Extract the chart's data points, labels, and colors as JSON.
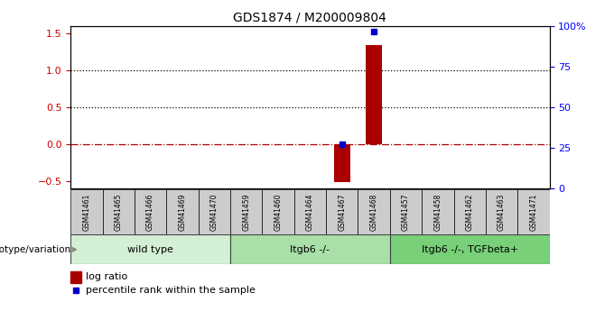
{
  "title": "GDS1874 / M200009804",
  "samples": [
    "GSM41461",
    "GSM41465",
    "GSM41466",
    "GSM41469",
    "GSM41470",
    "GSM41459",
    "GSM41460",
    "GSM41464",
    "GSM41467",
    "GSM41468",
    "GSM41457",
    "GSM41458",
    "GSM41462",
    "GSM41463",
    "GSM41471"
  ],
  "log_ratio": [
    0,
    0,
    0,
    0,
    0,
    0,
    0,
    0,
    -0.52,
    1.35,
    0,
    0,
    0,
    0,
    0
  ],
  "percentile_rank": [
    null,
    null,
    null,
    null,
    null,
    null,
    null,
    null,
    27,
    97,
    null,
    null,
    null,
    null,
    null
  ],
  "groups": [
    {
      "label": "wild type",
      "start": 0,
      "end": 5,
      "color": "#d4f0d4"
    },
    {
      "label": "Itgb6 -/-",
      "start": 5,
      "end": 10,
      "color": "#a8e0a8"
    },
    {
      "label": "Itgb6 -/-, TGFbeta+",
      "start": 10,
      "end": 15,
      "color": "#78d078"
    }
  ],
  "ylim": [
    -0.6,
    1.6
  ],
  "ylim_right": [
    0,
    100
  ],
  "bar_color": "#aa0000",
  "dot_color": "#0000cc",
  "zero_line_color": "#aa0000",
  "dotted_line_color": "#000000",
  "hline_values": [
    0.5,
    1.0
  ],
  "right_yticks": [
    0,
    25,
    50,
    75,
    100
  ],
  "right_ytick_labels": [
    "0",
    "25",
    "50",
    "75",
    "100%"
  ],
  "left_yticks": [
    -0.5,
    0,
    0.5,
    1.0,
    1.5
  ],
  "legend_bar_label": "log ratio",
  "legend_dot_label": "percentile rank within the sample",
  "genotype_label": "genotype/variation",
  "sample_box_color": "#cccccc",
  "bar_width": 0.5
}
